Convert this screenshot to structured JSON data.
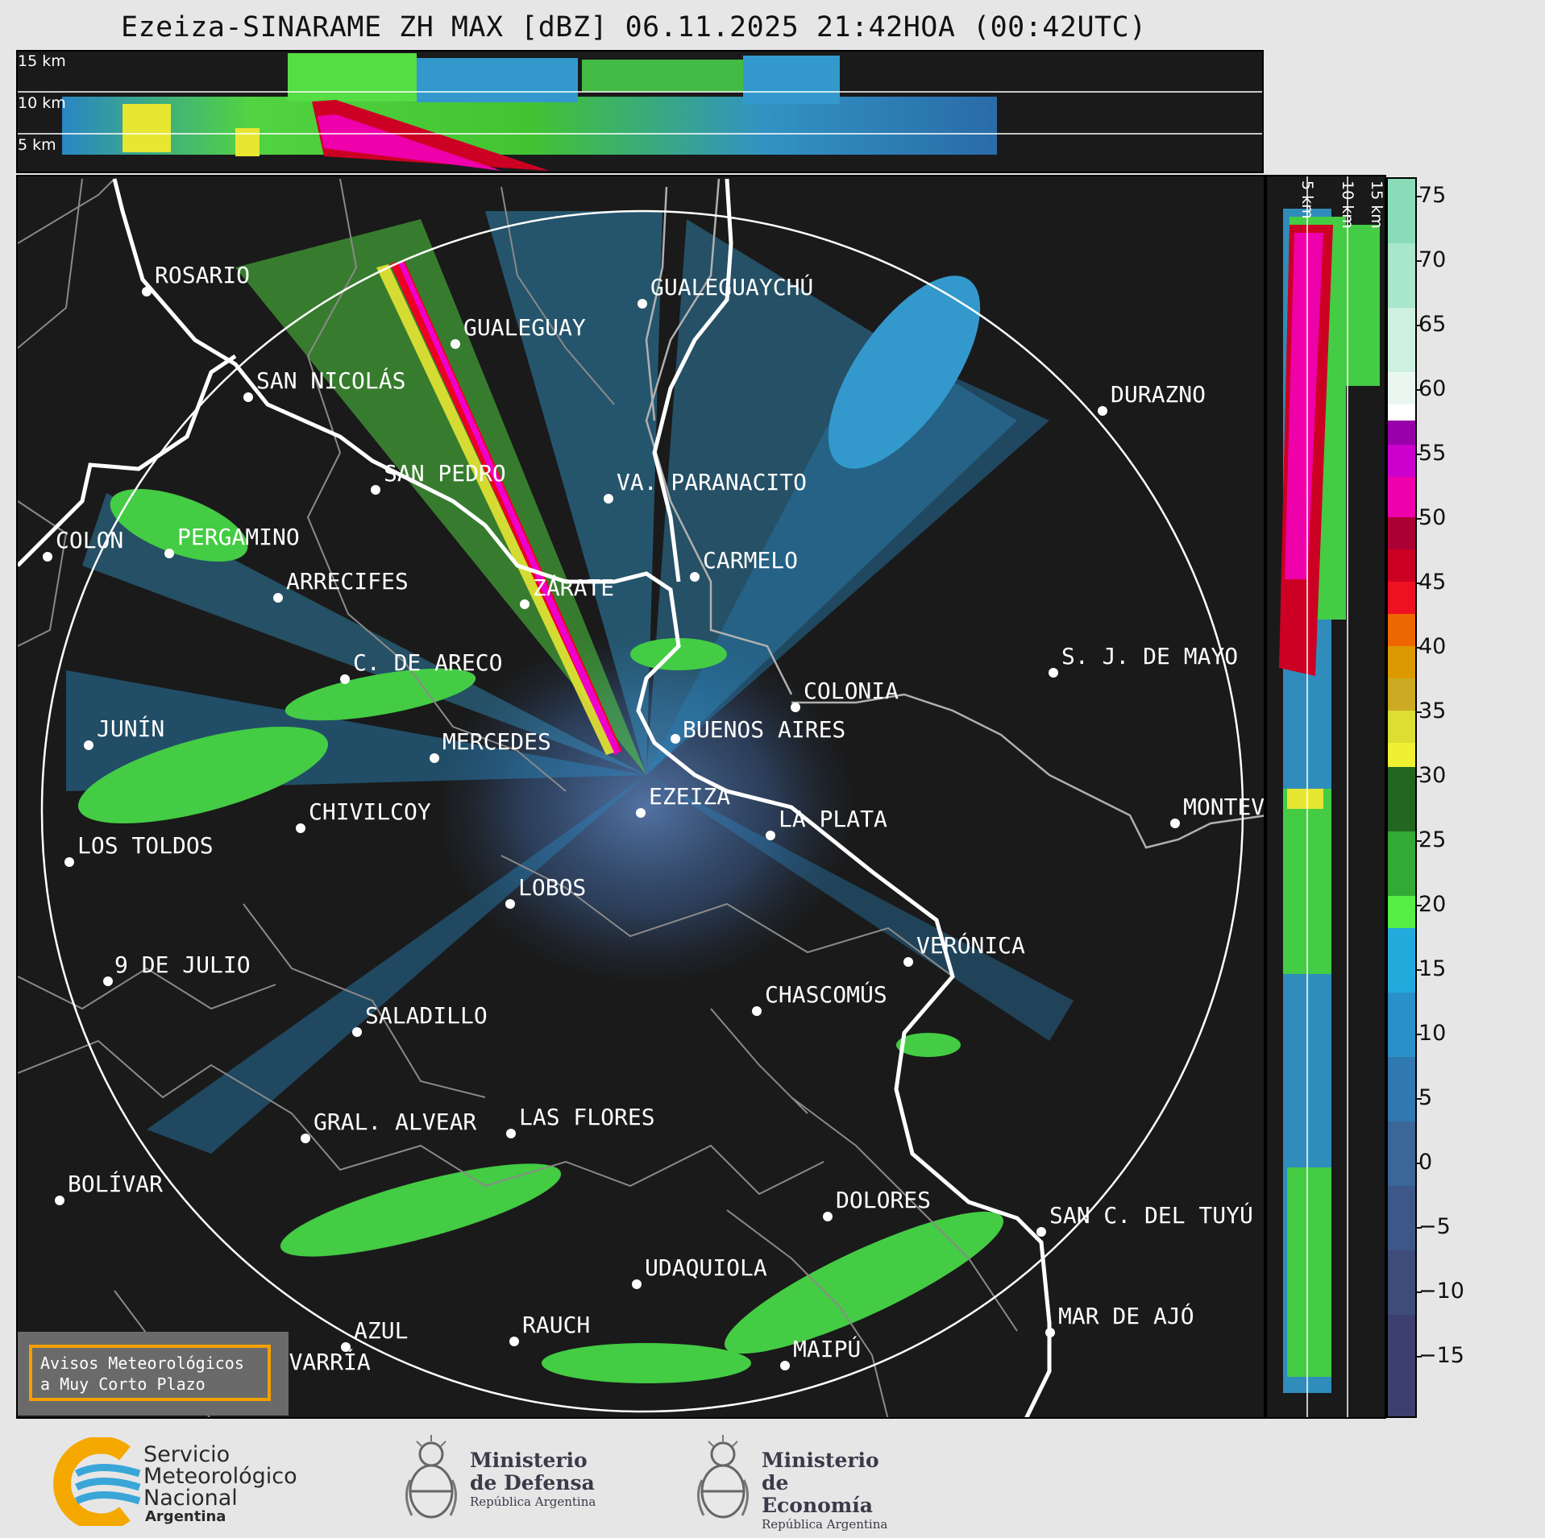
{
  "title": "Ezeiza-SINARAME ZH MAX [dBZ] 06.11.2025 21:42HOA (00:42UTC)",
  "top_panel": {
    "height_labels": [
      "15 km",
      "10 km",
      "5 km"
    ]
  },
  "side_panel": {
    "height_labels": [
      "5 km",
      "10 km",
      "15 km"
    ]
  },
  "colorbar": {
    "ticks": [
      "75",
      "70",
      "65",
      "60",
      "55",
      "50",
      "45",
      "40",
      "35",
      "30",
      "25",
      "20",
      "15",
      "10",
      "5",
      "0",
      "−5",
      "−10",
      "−15"
    ]
  },
  "cities": [
    {
      "name": "ROSARIO"
    },
    {
      "name": "GUALEGUAYCHÚ"
    },
    {
      "name": "GUALEGUAY"
    },
    {
      "name": "SAN NICOLÁS"
    },
    {
      "name": "DURAZNO"
    },
    {
      "name": "SAN PEDRO"
    },
    {
      "name": "VA. PARANACITO"
    },
    {
      "name": "COLON"
    },
    {
      "name": "PERGAMINO"
    },
    {
      "name": "CARMELO"
    },
    {
      "name": "ARRECIFES"
    },
    {
      "name": "ZÁRATE"
    },
    {
      "name": "S. J. DE MAYO"
    },
    {
      "name": "C. DE ARECO"
    },
    {
      "name": "COLONIA"
    },
    {
      "name": "JUNÍN"
    },
    {
      "name": "BUENOS AIRES"
    },
    {
      "name": "MERCEDES"
    },
    {
      "name": "EZEIZA"
    },
    {
      "name": "MONTEVIDEO"
    },
    {
      "name": "CHIVILCOY"
    },
    {
      "name": "LA PLATA"
    },
    {
      "name": "LOS TOLDOS"
    },
    {
      "name": "LOBOS"
    },
    {
      "name": "VERÓNICA"
    },
    {
      "name": "9 DE JULIO"
    },
    {
      "name": "CHASCOMÚS"
    },
    {
      "name": "SALADILLO"
    },
    {
      "name": "GRAL. ALVEAR"
    },
    {
      "name": "LAS FLORES"
    },
    {
      "name": "BOLÍVAR"
    },
    {
      "name": "DOLORES"
    },
    {
      "name": "SAN C. DEL TUYÚ"
    },
    {
      "name": "UDAQUIOLA"
    },
    {
      "name": "RAUCH"
    },
    {
      "name": "AZUL"
    },
    {
      "name": "MAR DE AJÓ"
    },
    {
      "name": "OLAVARRÍA"
    },
    {
      "name": "MAIPÚ"
    }
  ],
  "warning_box": {
    "line1": "Avisos Meteorológicos",
    "line2": "a Muy Corto Plazo"
  },
  "logos": {
    "smn": {
      "line1": "Servicio",
      "line2": "Meteorológico",
      "line3": "Nacional",
      "line4": "Argentina"
    },
    "defensa": {
      "line1": "Ministerio",
      "line2": "de Defensa",
      "line3": "República Argentina"
    },
    "economia": {
      "line1": "Ministerio",
      "line2": "de Economía",
      "line3": "República Argentina"
    }
  },
  "colors": {
    "panel_bg": "#1a1a1a",
    "coast": "#ffffff",
    "borders": "#8a8a8a",
    "warning_border": "#f2a000",
    "smn_orange": "#f5a800",
    "smn_blue": "#3aa6d8"
  }
}
